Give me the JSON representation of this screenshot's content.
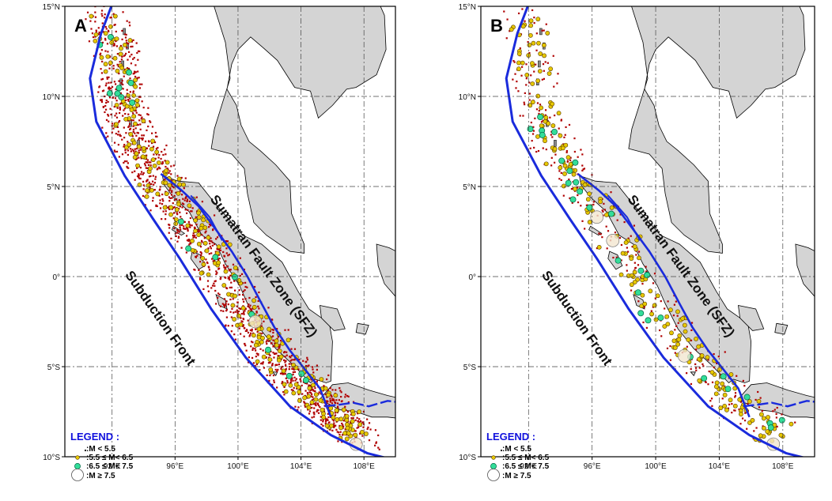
{
  "panels": [
    {
      "letter": "A"
    },
    {
      "letter": "B"
    }
  ],
  "axes": {
    "lat_labels": [
      "15°N",
      "10°N",
      "5°N",
      "0°",
      "5°S",
      "10°S"
    ],
    "lon_labels": [
      "92°E",
      "96°E",
      "100°E",
      "104°E",
      "108°E"
    ]
  },
  "labels": {
    "fault": "Sumatran Fault Zone (SFZ)",
    "subduction": "Subduction Front"
  },
  "legend": {
    "title": "LEGEND :",
    "items": [
      ":M < 5.5",
      ":5.5 ≤ M< 6.5",
      ":6.5 ≤ M< 7.5",
      ":M ≥ 7.5"
    ]
  },
  "colors": {
    "land": "#d4d4d4",
    "sea": "#ffffff",
    "fault_line": "#1a2bdc",
    "small_quake": "#b00000",
    "medium_quake": "#e6c800",
    "large_quake": "#33dd99",
    "major_quake": "#f3e6cf"
  }
}
